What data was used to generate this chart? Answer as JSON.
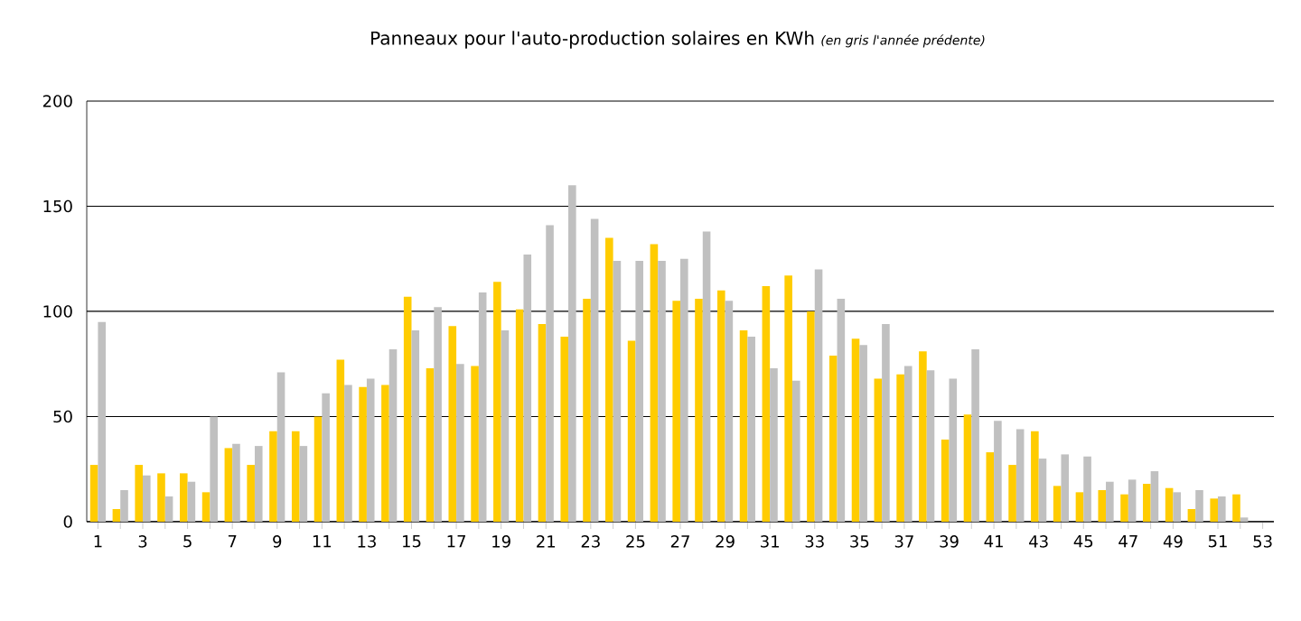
{
  "chart_data": {
    "type": "bar",
    "title": "Panneaux pour l'auto-production solaires en KWh",
    "subtitle": "(en gris l'année prédente)",
    "categories": [
      "1",
      null,
      "3",
      null,
      "5",
      null,
      "7",
      null,
      "9",
      null,
      "11",
      null,
      "13",
      null,
      "15",
      null,
      "17",
      null,
      "19",
      null,
      "21",
      null,
      "23",
      null,
      "25",
      null,
      "27",
      null,
      "29",
      null,
      "31",
      null,
      "33",
      null,
      "35",
      null,
      "37",
      null,
      "39",
      null,
      "41",
      null,
      "43",
      null,
      "45",
      null,
      "47",
      null,
      "49",
      null,
      "51",
      null,
      "53"
    ],
    "series": [
      {
        "color": "#ffcc00",
        "values": [
          27,
          6,
          27,
          23,
          23,
          14,
          35,
          27,
          43,
          43,
          50,
          77,
          64,
          65,
          107,
          73,
          93,
          74,
          114,
          101,
          94,
          88,
          106,
          135,
          86,
          132,
          105,
          106,
          110,
          91,
          112,
          117,
          100,
          79,
          87,
          68,
          70,
          81,
          39,
          51,
          33,
          27,
          43,
          17,
          14,
          15,
          13,
          18,
          16,
          6,
          11,
          13,
          null
        ]
      },
      {
        "color": "#c0c0c0",
        "values": [
          95,
          15,
          22,
          12,
          19,
          50,
          37,
          36,
          71,
          36,
          61,
          65,
          68,
          82,
          91,
          102,
          75,
          109,
          91,
          127,
          141,
          160,
          144,
          124,
          124,
          124,
          125,
          138,
          105,
          88,
          73,
          67,
          120,
          106,
          84,
          94,
          74,
          72,
          68,
          82,
          48,
          44,
          30,
          32,
          31,
          19,
          20,
          24,
          14,
          15,
          12,
          2,
          null
        ]
      }
    ],
    "ylim": [
      0,
      200
    ],
    "yticks": [
      0,
      50,
      100,
      150,
      200
    ],
    "grid": "y"
  }
}
